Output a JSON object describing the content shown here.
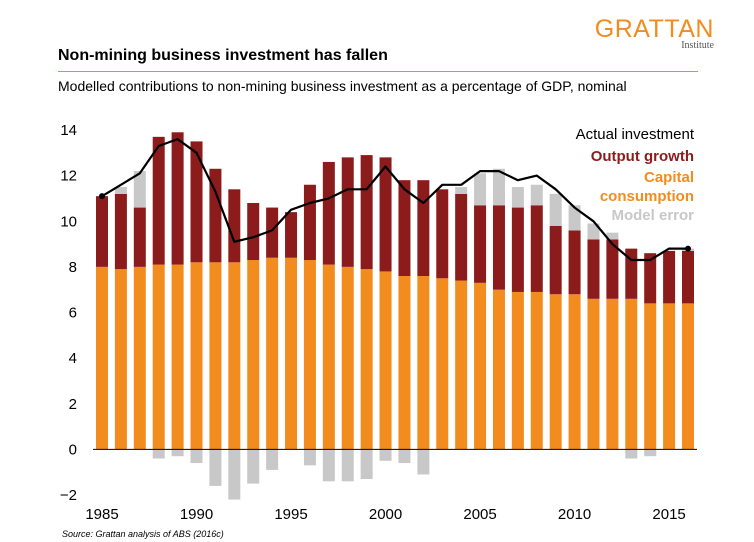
{
  "logo": {
    "main": "GRATTAN",
    "sub": "Institute"
  },
  "title": "Non-mining business investment has fallen",
  "subtitle": "Modelled contributions to non-mining business investment as a percentage of GDP, nominal",
  "source": "Source: Grattan analysis of ABS (2016c)",
  "colors": {
    "capital": "#f28c1e",
    "output": "#8c1c1c",
    "model_error": "#c8c8c8",
    "actual": "#000000",
    "accent": "#f28c1e"
  },
  "chart_data": {
    "type": "bar",
    "stacked": true,
    "categories": [
      1985,
      1986,
      1987,
      1988,
      1989,
      1990,
      1991,
      1992,
      1993,
      1994,
      1995,
      1996,
      1997,
      1998,
      1999,
      2000,
      2001,
      2002,
      2003,
      2004,
      2005,
      2006,
      2007,
      2008,
      2009,
      2010,
      2011,
      2012,
      2013,
      2014,
      2015,
      2016
    ],
    "series": [
      {
        "name": "Capital consumption",
        "kind": "bar",
        "values": [
          8.0,
          7.9,
          8.0,
          8.1,
          8.1,
          8.2,
          8.2,
          8.2,
          8.3,
          8.4,
          8.4,
          8.3,
          8.1,
          8.0,
          7.9,
          7.8,
          7.6,
          7.6,
          7.5,
          7.4,
          7.3,
          7.0,
          6.9,
          6.9,
          6.8,
          6.8,
          6.6,
          6.6,
          6.6,
          6.4,
          6.4,
          6.4
        ]
      },
      {
        "name": "Output growth",
        "kind": "bar",
        "values": [
          3.1,
          3.3,
          2.6,
          5.6,
          5.8,
          5.3,
          4.1,
          3.2,
          2.5,
          2.2,
          2.0,
          3.3,
          4.5,
          4.8,
          5.0,
          5.0,
          4.2,
          4.2,
          3.9,
          3.8,
          3.4,
          3.7,
          3.7,
          3.8,
          3.0,
          2.8,
          2.6,
          2.6,
          2.2,
          2.2,
          2.3,
          2.3
        ]
      },
      {
        "name": "Model error",
        "kind": "bar",
        "values": [
          0.0,
          0.3,
          1.6,
          -0.4,
          -0.3,
          -0.6,
          -1.6,
          -2.2,
          -1.5,
          -0.9,
          0.0,
          -0.7,
          -1.4,
          -1.4,
          -1.3,
          -0.5,
          -0.6,
          -1.1,
          0.0,
          0.3,
          1.4,
          1.6,
          0.9,
          0.9,
          1.4,
          1.1,
          0.7,
          0.3,
          -0.4,
          -0.3,
          0.0,
          0.1
        ]
      },
      {
        "name": "Actual investment",
        "kind": "line",
        "values": [
          11.1,
          11.6,
          12.1,
          13.3,
          13.6,
          13.0,
          11.3,
          9.1,
          9.3,
          9.6,
          10.5,
          10.8,
          11.0,
          11.4,
          11.4,
          12.4,
          11.4,
          10.8,
          11.6,
          11.6,
          12.2,
          12.2,
          11.8,
          12.0,
          11.4,
          10.6,
          10.0,
          9.0,
          8.3,
          8.3,
          8.8,
          8.8
        ]
      }
    ],
    "legend": [
      "Actual investment",
      "Output growth",
      "Capital consumption",
      "Model error"
    ],
    "legend_position": "top-right",
    "ylim": [
      -2,
      14
    ],
    "yticks": [
      "−2",
      "0",
      "2",
      "4",
      "6",
      "8",
      "10",
      "12",
      "14"
    ],
    "xticks": [
      "1985",
      "1990",
      "1995",
      "2000",
      "2005",
      "2010",
      "2015"
    ],
    "xtick_years": [
      1985,
      1990,
      1995,
      2000,
      2005,
      2010,
      2015
    ],
    "grid": false
  }
}
